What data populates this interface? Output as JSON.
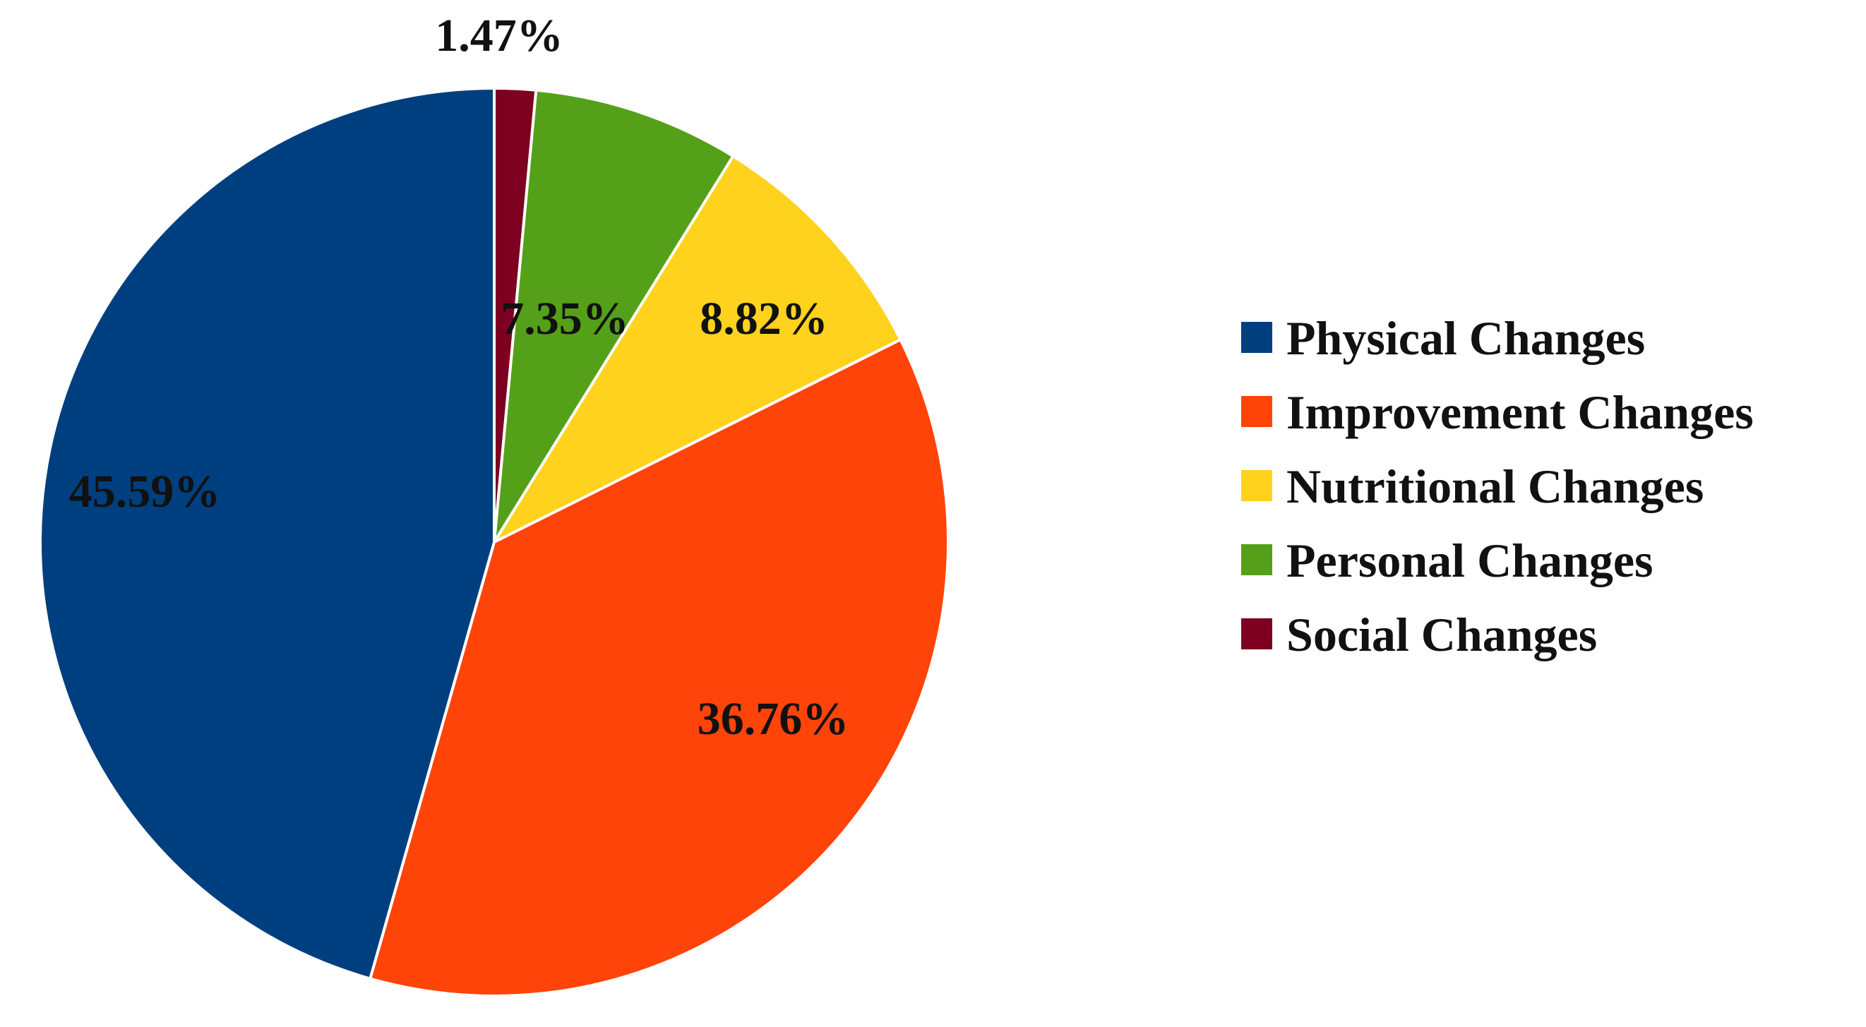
{
  "chart_data": {
    "type": "pie",
    "title": "",
    "legend_position": "right",
    "slices": [
      {
        "name": "Physical Changes",
        "value": 45.59,
        "label": "45.59%",
        "color": "#003f7f"
      },
      {
        "name": "Improvement Changes",
        "value": 36.76,
        "label": "36.76%",
        "color": "#ff4409"
      },
      {
        "name": "Nutritional Changes",
        "value": 8.82,
        "label": "8.82%",
        "color": "#ffd21e"
      },
      {
        "name": "Personal Changes",
        "value": 7.35,
        "label": "7.35%",
        "color": "#55a019"
      },
      {
        "name": "Social Changes",
        "value": 1.47,
        "label": "1.47%",
        "color": "#7d0020"
      }
    ]
  }
}
